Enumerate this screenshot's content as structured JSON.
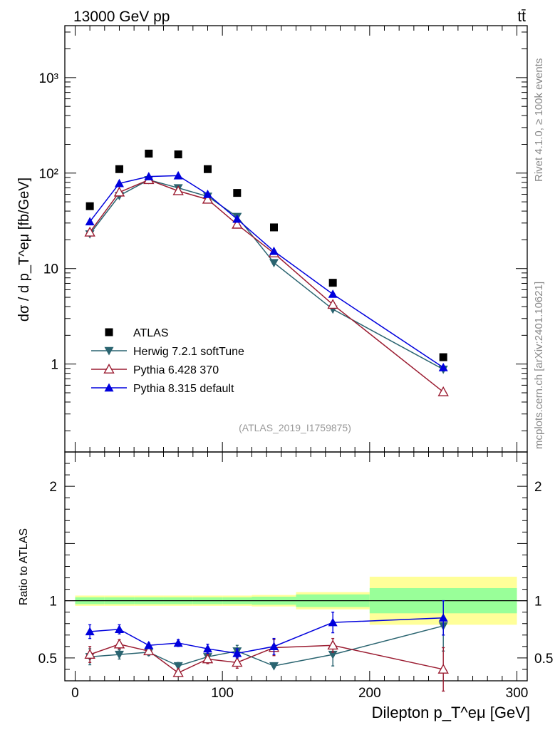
{
  "header": {
    "left": "13000 GeV pp",
    "right": "tt̄"
  },
  "side": {
    "rivet": "Rivet 4.1.0, ≥ 100k events",
    "mcplots": "mcplots.cern.ch [arXiv:2401.10621]"
  },
  "analysis_id": "(ATLAS_2019_I1759875)",
  "chart_data": [
    {
      "type": "line",
      "panel": "main",
      "yscale": "log",
      "ylim": [
        0.12,
        3500
      ],
      "xlim": [
        -7,
        307
      ],
      "ylabel": "dσ / d p_T^eμ [fb/GeV]",
      "ytick_labels": {
        "1": "1",
        "10": "10",
        "100": "10²",
        "1000": "10³"
      },
      "x": [
        10,
        30,
        50,
        70,
        90,
        110,
        135,
        175,
        250
      ],
      "series": [
        {
          "name": "ATLAS",
          "color": "#000000",
          "marker": "square",
          "values": [
            45,
            110,
            160,
            157,
            110,
            62,
            27,
            7.1,
            1.18
          ]
        },
        {
          "name": "Herwig 7.2.1 softTune",
          "color": "#2a6470",
          "marker": "triangle-down",
          "values": [
            23,
            58,
            85,
            70,
            57,
            35,
            11.5,
            3.75,
            0.88
          ]
        },
        {
          "name": "Pythia 6.428 370",
          "color": "#9b1c31",
          "marker": "triangle-up-open",
          "values": [
            24,
            63,
            85,
            65,
            53,
            29,
            14.5,
            4.2,
            0.51
          ]
        },
        {
          "name": "Pythia 8.315 default",
          "color": "#0000dd",
          "marker": "triangle-up",
          "values": [
            31,
            78,
            92,
            94,
            60,
            33,
            15.2,
            5.4,
            0.92
          ]
        }
      ],
      "legend_position": "bottom-left"
    },
    {
      "type": "line",
      "panel": "ratio",
      "yscale": "linear",
      "ylim": [
        0.3,
        2.3
      ],
      "xlim": [
        -7,
        307
      ],
      "ylabel": "Ratio to ATLAS",
      "xlabel": "Dilepton p_T^eμ [GeV]",
      "xtick_labels": [
        "0",
        "100",
        "200",
        "300"
      ],
      "ytick_labels": [
        "0.5",
        "1",
        "2"
      ],
      "x": [
        10,
        30,
        50,
        70,
        90,
        110,
        135,
        175,
        250
      ],
      "bands": {
        "bin_edges": [
          0,
          20,
          40,
          60,
          80,
          100,
          120,
          150,
          200,
          300
        ],
        "inner_halfwidth": [
          0.03,
          0.03,
          0.03,
          0.03,
          0.03,
          0.03,
          0.035,
          0.055,
          0.11
        ],
        "outer_halfwidth": [
          0.045,
          0.045,
          0.045,
          0.045,
          0.045,
          0.045,
          0.05,
          0.075,
          0.21
        ],
        "inner_color": "#99ff99",
        "outer_color": "#ffff99"
      },
      "series": [
        {
          "name": "Herwig 7.2.1 softTune",
          "color": "#2a6470",
          "marker": "triangle-down",
          "values": [
            0.51,
            0.53,
            0.55,
            0.43,
            0.51,
            0.56,
            0.43,
            0.53,
            0.78
          ],
          "errors": [
            0.07,
            0.04,
            0.03,
            0.03,
            0.04,
            0.05,
            0.0,
            0.1,
            0.22
          ]
        },
        {
          "name": "Pythia 6.428 370",
          "color": "#9b1c31",
          "marker": "triangle-up-open",
          "values": [
            0.53,
            0.62,
            0.56,
            0.37,
            0.49,
            0.46,
            0.59,
            0.61,
            0.4
          ],
          "errors": [
            0.07,
            0.04,
            0.03,
            0.03,
            0.04,
            0.05,
            0.07,
            0.06,
            0.19
          ]
        },
        {
          "name": "Pythia 8.315 default",
          "color": "#0000dd",
          "marker": "triangle-up",
          "values": [
            0.73,
            0.75,
            0.61,
            0.63,
            0.58,
            0.54,
            0.6,
            0.81,
            0.85
          ],
          "errors": [
            0.06,
            0.04,
            0.02,
            0.03,
            0.04,
            0.04,
            0.07,
            0.09,
            0.15
          ]
        }
      ]
    }
  ]
}
